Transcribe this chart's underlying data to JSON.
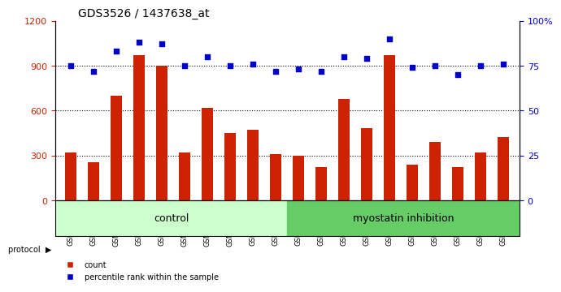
{
  "title": "GDS3526 / 1437638_at",
  "samples": [
    "GSM344631",
    "GSM344632",
    "GSM344633",
    "GSM344634",
    "GSM344635",
    "GSM344636",
    "GSM344637",
    "GSM344638",
    "GSM344639",
    "GSM344640",
    "GSM344641",
    "GSM344642",
    "GSM344643",
    "GSM344644",
    "GSM344645",
    "GSM344646",
    "GSM344647",
    "GSM344648",
    "GSM344649",
    "GSM344650"
  ],
  "counts": [
    320,
    255,
    700,
    970,
    900,
    320,
    620,
    450,
    470,
    310,
    300,
    220,
    680,
    480,
    970,
    240,
    390,
    220,
    320,
    420
  ],
  "percentiles": [
    75,
    72,
    83,
    88,
    87,
    75,
    80,
    75,
    76,
    72,
    73,
    72,
    80,
    79,
    90,
    74,
    75,
    70,
    75,
    76
  ],
  "control_samples": 10,
  "bar_color": "#cc2200",
  "percentile_color": "#0000cc",
  "control_bg": "#ccffcc",
  "myostatin_bg": "#66cc66",
  "ylim_left": [
    0,
    1200
  ],
  "ylim_right": [
    0,
    100
  ],
  "yticks_left": [
    0,
    300,
    600,
    900,
    1200
  ],
  "ytick_labels_left": [
    "0",
    "300",
    "600",
    "900",
    "1200"
  ],
  "yticks_right": [
    0,
    25,
    50,
    75,
    100
  ],
  "ytick_labels_right": [
    "0",
    "25",
    "50",
    "75",
    "100%"
  ],
  "grid_vals": [
    300,
    600,
    900
  ]
}
